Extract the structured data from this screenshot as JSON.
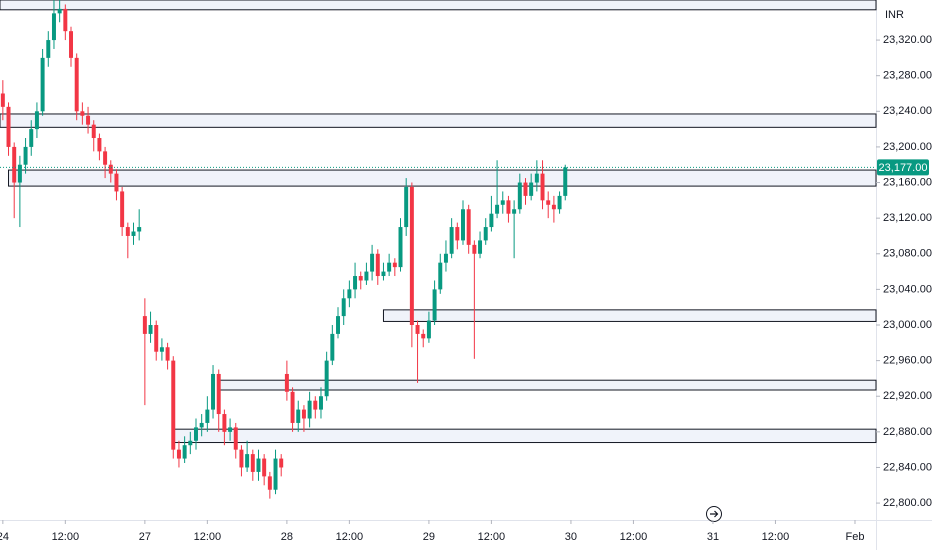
{
  "chart_data": {
    "type": "candlestick",
    "currency": "INR",
    "up_color": "#089981",
    "down_color": "#f23645",
    "zone_color": "#f0f3fa",
    "xlim": [
      -0.5,
      153.7
    ],
    "ylim": [
      22781,
      23365
    ],
    "xticks": [
      {
        "value": 0,
        "label": "24"
      },
      {
        "value": 11,
        "label": "12:00"
      },
      {
        "value": 25,
        "label": "27"
      },
      {
        "value": 36,
        "label": "12:00"
      },
      {
        "value": 50,
        "label": "28"
      },
      {
        "value": 61,
        "label": "12:00"
      },
      {
        "value": 75,
        "label": "29"
      },
      {
        "value": 86,
        "label": "12:00"
      },
      {
        "value": 100,
        "label": "30"
      },
      {
        "value": 111,
        "label": "12:00"
      },
      {
        "value": 125,
        "label": "31"
      },
      {
        "value": 136,
        "label": "12:00"
      },
      {
        "value": 150,
        "label": "Feb"
      }
    ],
    "yticks": [
      {
        "value": 22800,
        "label": "22,800.00"
      },
      {
        "value": 22840,
        "label": "22,840.00"
      },
      {
        "value": 22880,
        "label": "22,880.00"
      },
      {
        "value": 22920,
        "label": "22,920.00"
      },
      {
        "value": 22960,
        "label": "22,960.00"
      },
      {
        "value": 23000,
        "label": "23,000.00"
      },
      {
        "value": 23040,
        "label": "23,040.00"
      },
      {
        "value": 23080,
        "label": "23,080.00"
      },
      {
        "value": 23120,
        "label": "23,120.00"
      },
      {
        "value": 23160,
        "label": "23,160.00"
      },
      {
        "value": 23200,
        "label": "23,200.00"
      },
      {
        "value": 23240,
        "label": "23,240.00"
      },
      {
        "value": 23280,
        "label": "23,280.00"
      },
      {
        "value": 23320,
        "label": "23,320.00"
      }
    ],
    "last_price": {
      "value": 23177,
      "label": "23,177.00"
    },
    "zones": [
      {
        "start": -0.5,
        "top": 23365,
        "bottom": 23354
      },
      {
        "start": -0.5,
        "top": 23237,
        "bottom": 23222
      },
      {
        "start": 1,
        "top": 23174,
        "bottom": 23156
      },
      {
        "start": 67,
        "top": 23017,
        "bottom": 23004
      },
      {
        "start": 38,
        "top": 22938,
        "bottom": 22927
      },
      {
        "start": 30,
        "top": 22883,
        "bottom": 22868
      }
    ],
    "open": [
      23260,
      23245,
      23200,
      23160,
      23180,
      23200,
      23220,
      23240,
      23300,
      23320,
      23350,
      23355,
      23330,
      23300,
      23240,
      23235,
      23225,
      23210,
      23195,
      23180,
      23170,
      23150,
      23110,
      23100,
      23105,
      23010,
      22990,
      23000,
      22970,
      22975,
      22960,
      22860,
      22850,
      22865,
      22870,
      22885,
      22890,
      22905,
      22945,
      22900,
      22880,
      22885,
      22860,
      22840,
      22855,
      22835,
      22850,
      22830,
      22815,
      22850,
      22945,
      22925,
      22890,
      22905,
      22895,
      22915,
      22905,
      22920,
      22960,
      22990,
      23010,
      23030,
      23040,
      23055,
      23050,
      23060,
      23080,
      23055,
      23060,
      23070,
      23065,
      23110,
      23155,
      23000,
      22990,
      22985,
      23005,
      23040,
      23070,
      23080,
      23110,
      23095,
      23130,
      23090,
      23080,
      23095,
      23110,
      23125,
      23135,
      23140,
      23125,
      23130,
      23160,
      23145,
      23160,
      23170,
      23140,
      23135,
      23130,
      23145
    ],
    "high": [
      23275,
      23250,
      23205,
      23190,
      23210,
      23230,
      23250,
      23310,
      23330,
      23365,
      23365,
      23360,
      23335,
      23305,
      23250,
      23245,
      23230,
      23215,
      23200,
      23185,
      23175,
      23155,
      23115,
      23115,
      23130,
      23030,
      23015,
      23005,
      22985,
      22980,
      22965,
      22870,
      22875,
      22880,
      22895,
      22900,
      22920,
      22955,
      22950,
      22905,
      22895,
      22890,
      22865,
      22870,
      22860,
      22860,
      22855,
      22835,
      22860,
      22855,
      22960,
      22930,
      22915,
      22910,
      22925,
      22920,
      22930,
      22970,
      23000,
      23020,
      23040,
      23050,
      23070,
      23060,
      23070,
      23090,
      23085,
      23070,
      23080,
      23075,
      23120,
      23165,
      23160,
      23005,
      22995,
      23015,
      23050,
      23080,
      23095,
      23120,
      23115,
      23140,
      23135,
      23095,
      23105,
      23120,
      23145,
      23185,
      23150,
      23145,
      23140,
      23170,
      23165,
      23170,
      23185,
      23185,
      23150,
      23145,
      23150,
      23180
    ],
    "low": [
      23230,
      23190,
      23120,
      23110,
      23170,
      23190,
      23210,
      23235,
      23290,
      23310,
      23340,
      23320,
      23290,
      23230,
      23225,
      23215,
      23195,
      23185,
      23165,
      23160,
      23140,
      23100,
      23075,
      23090,
      23095,
      22910,
      22980,
      22960,
      22960,
      22950,
      22850,
      22840,
      22845,
      22855,
      22860,
      22875,
      22880,
      22895,
      22880,
      22865,
      22870,
      22850,
      22830,
      22835,
      22825,
      22825,
      22820,
      22805,
      22810,
      22830,
      22915,
      22880,
      22880,
      22880,
      22885,
      22895,
      22895,
      22915,
      22955,
      22985,
      23000,
      23020,
      23030,
      23040,
      23045,
      23050,
      23045,
      23050,
      23055,
      23055,
      23060,
      23100,
      22975,
      22935,
      22975,
      22980,
      23000,
      23035,
      23060,
      23075,
      23085,
      23090,
      23080,
      22962,
      23075,
      23090,
      23105,
      23120,
      23125,
      23115,
      23075,
      23125,
      23135,
      23140,
      23150,
      23130,
      23120,
      23115,
      23125,
      23140
    ],
    "close": [
      23245,
      23200,
      23160,
      23180,
      23200,
      23220,
      23240,
      23300,
      23320,
      23350,
      23355,
      23330,
      23300,
      23240,
      23235,
      23225,
      23210,
      23195,
      23180,
      23170,
      23150,
      23110,
      23100,
      23105,
      23110,
      22990,
      23000,
      22970,
      22975,
      22960,
      22860,
      22850,
      22865,
      22870,
      22885,
      22890,
      22905,
      22945,
      22900,
      22880,
      22885,
      22860,
      22840,
      22855,
      22835,
      22850,
      22830,
      22815,
      22850,
      22840,
      22925,
      22890,
      22905,
      22895,
      22915,
      22905,
      22920,
      22960,
      22990,
      23010,
      23030,
      23040,
      23055,
      23050,
      23060,
      23080,
      23055,
      23060,
      23070,
      23065,
      23110,
      23155,
      23000,
      22990,
      22985,
      23005,
      23040,
      23070,
      23080,
      23110,
      23095,
      23130,
      23090,
      23080,
      23095,
      23110,
      23125,
      23135,
      23140,
      23125,
      23130,
      23160,
      23145,
      23160,
      23170,
      23140,
      23135,
      23130,
      23145,
      23177
    ]
  }
}
